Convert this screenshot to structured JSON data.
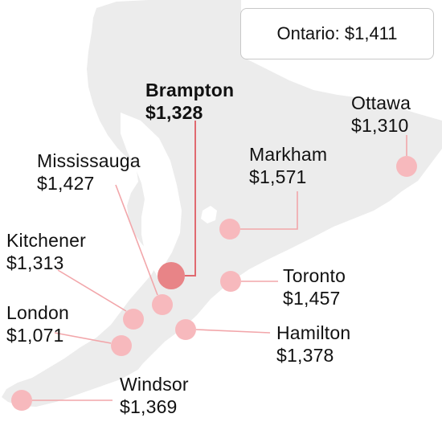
{
  "summary": {
    "region": "Ontario",
    "value": "$1,411"
  },
  "colors": {
    "land": "#ececec",
    "marker": "#f7b9bd",
    "marker_highlight": "#e88487",
    "leader": "#f2a6aa",
    "leader_highlight": "#e06a70"
  },
  "cities": [
    {
      "id": "brampton",
      "name": "Brampton",
      "value": "$1,328",
      "highlight": true
    },
    {
      "id": "ottawa",
      "name": "Ottawa",
      "value": "$1,310",
      "highlight": false
    },
    {
      "id": "markham",
      "name": "Markham",
      "value": "$1,571",
      "highlight": false
    },
    {
      "id": "mississauga",
      "name": "Mississauga",
      "value": "$1,427",
      "highlight": false
    },
    {
      "id": "kitchener",
      "name": "Kitchener",
      "value": "$1,313",
      "highlight": false
    },
    {
      "id": "toronto",
      "name": "Toronto",
      "value": "$1,457",
      "highlight": false
    },
    {
      "id": "london",
      "name": "London",
      "value": "$1,071",
      "highlight": false
    },
    {
      "id": "hamilton",
      "name": "Hamilton",
      "value": "$1,378",
      "highlight": false
    },
    {
      "id": "windsor",
      "name": "Windsor",
      "value": "$1,369",
      "highlight": false
    }
  ]
}
